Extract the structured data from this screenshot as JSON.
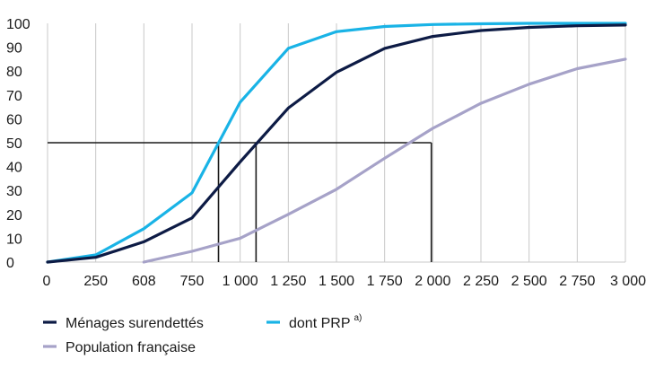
{
  "chart_data": {
    "type": "line",
    "title": "",
    "xlabel": "",
    "ylabel": "",
    "ylim": [
      0,
      100
    ],
    "yticks": [
      "0",
      "10",
      "20",
      "30",
      "40",
      "50",
      "60",
      "70",
      "80",
      "90",
      "100"
    ],
    "xticks": [
      "0",
      "250",
      "608",
      "750",
      "1 000",
      "1 250",
      "1 500",
      "1 750",
      "2 000",
      "2 250",
      "2 500",
      "2 750",
      "3 000"
    ],
    "grid": "vertical",
    "legend_position": "bottom-left",
    "series": [
      {
        "name": "Ménages surendettés",
        "color": "#0d1b45",
        "values": [
          [
            0,
            0
          ],
          [
            1,
            2
          ],
          [
            2,
            8.5
          ],
          [
            3,
            18.5
          ],
          [
            4,
            42
          ],
          [
            5,
            64.5
          ],
          [
            6,
            79.5
          ],
          [
            7,
            89.5
          ],
          [
            8,
            94.5
          ],
          [
            9,
            97
          ],
          [
            10,
            98.3
          ],
          [
            11,
            99
          ],
          [
            12,
            99.3
          ]
        ]
      },
      {
        "name": "dont PRP",
        "name_sup": "a)",
        "color": "#19b3e6",
        "values": [
          [
            0,
            0
          ],
          [
            1,
            3
          ],
          [
            2,
            14
          ],
          [
            3,
            29
          ],
          [
            4,
            67
          ],
          [
            5,
            89.5
          ],
          [
            6,
            96.5
          ],
          [
            7,
            98.7
          ],
          [
            8,
            99.5
          ],
          [
            9,
            99.8
          ],
          [
            10,
            100
          ],
          [
            11,
            100
          ],
          [
            12,
            100
          ]
        ]
      },
      {
        "name": "Population française",
        "color": "#a6a2c8",
        "values": [
          [
            2,
            0
          ],
          [
            3,
            4.5
          ],
          [
            4,
            10
          ],
          [
            5,
            20
          ],
          [
            6,
            30.5
          ],
          [
            7,
            43.5
          ],
          [
            8,
            56
          ],
          [
            9,
            66.5
          ],
          [
            10,
            74.5
          ],
          [
            11,
            81
          ],
          [
            12,
            85
          ]
        ]
      }
    ],
    "reference_lines": [
      {
        "y": 50,
        "x": 3.55
      },
      {
        "y": 50,
        "x": 4.33
      },
      {
        "y": 50,
        "x": 7.97
      }
    ]
  }
}
